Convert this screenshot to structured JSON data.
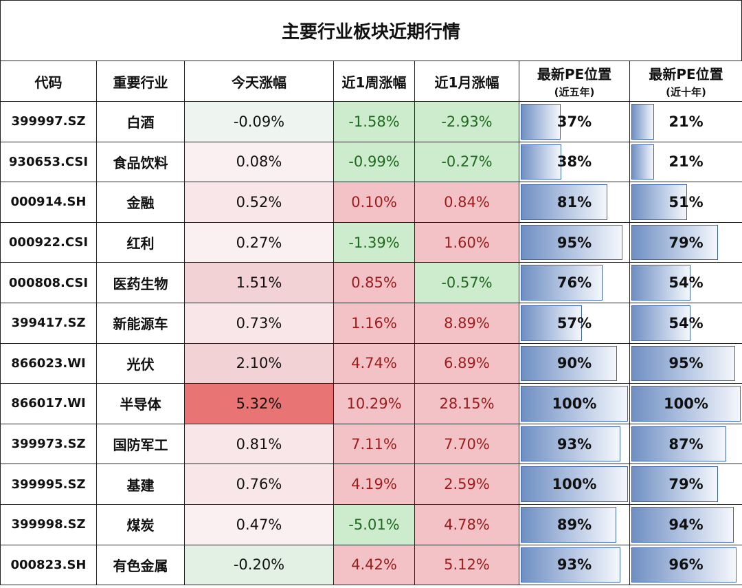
{
  "title": "主要行业板块近期行情",
  "headers": {
    "code": "代码",
    "industry": "重要行业",
    "today": "今天涨幅",
    "week": "近1周涨幅",
    "month": "近1月涨幅",
    "pe5_main": "最新PE位置",
    "pe5_sub": "(近五年)",
    "pe10_main": "最新PE位置",
    "pe10_sub": "(近十年)"
  },
  "chart_data": {
    "type": "table",
    "columns": [
      "代码",
      "重要行业",
      "今天涨幅",
      "近1周涨幅",
      "近1月涨幅",
      "最新PE位置(近五年)",
      "最新PE位置(近十年)"
    ],
    "rows": [
      {
        "code": "399997.SZ",
        "name": "白酒",
        "today": "-0.09%",
        "week": "-1.58%",
        "month": "-2.93%",
        "pe5": "37%",
        "pe10": "21%",
        "pe5_value": 37,
        "pe10_value": 21
      },
      {
        "code": "930653.CSI",
        "name": "食品饮料",
        "today": "0.08%",
        "week": "-0.99%",
        "month": "-0.27%",
        "pe5": "38%",
        "pe10": "21%",
        "pe5_value": 38,
        "pe10_value": 21
      },
      {
        "code": "000914.SH",
        "name": "金融",
        "today": "0.52%",
        "week": "0.10%",
        "month": "0.84%",
        "pe5": "81%",
        "pe10": "51%",
        "pe5_value": 81,
        "pe10_value": 51
      },
      {
        "code": "000922.CSI",
        "name": "红利",
        "today": "0.27%",
        "week": "-1.39%",
        "month": "1.60%",
        "pe5": "95%",
        "pe10": "79%",
        "pe5_value": 95,
        "pe10_value": 79
      },
      {
        "code": "000808.CSI",
        "name": "医药生物",
        "today": "1.51%",
        "week": "0.85%",
        "month": "-0.57%",
        "pe5": "76%",
        "pe10": "54%",
        "pe5_value": 76,
        "pe10_value": 54
      },
      {
        "code": "399417.SZ",
        "name": "新能源车",
        "today": "0.73%",
        "week": "1.16%",
        "month": "8.89%",
        "pe5": "57%",
        "pe10": "54%",
        "pe5_value": 57,
        "pe10_value": 54
      },
      {
        "code": "866023.WI",
        "name": "光伏",
        "today": "2.10%",
        "week": "4.74%",
        "month": "6.89%",
        "pe5": "90%",
        "pe10": "95%",
        "pe5_value": 90,
        "pe10_value": 95
      },
      {
        "code": "866017.WI",
        "name": "半导体",
        "today": "5.32%",
        "week": "10.29%",
        "month": "28.15%",
        "pe5": "100%",
        "pe10": "100%",
        "pe5_value": 100,
        "pe10_value": 100
      },
      {
        "code": "399973.SZ",
        "name": "国防军工",
        "today": "0.81%",
        "week": "7.11%",
        "month": "7.70%",
        "pe5": "93%",
        "pe10": "87%",
        "pe5_value": 93,
        "pe10_value": 87
      },
      {
        "code": "399995.SZ",
        "name": "基建",
        "today": "0.76%",
        "week": "4.19%",
        "month": "2.59%",
        "pe5": "100%",
        "pe10": "79%",
        "pe5_value": 100,
        "pe10_value": 79
      },
      {
        "code": "399998.SZ",
        "name": "煤炭",
        "today": "0.47%",
        "week": "-5.01%",
        "month": "4.78%",
        "pe5": "89%",
        "pe10": "94%",
        "pe5_value": 89,
        "pe10_value": 94
      },
      {
        "code": "000823.SH",
        "name": "有色金属",
        "today": "-0.20%",
        "week": "4.42%",
        "month": "5.12%",
        "pe5": "93%",
        "pe10": "96%",
        "pe5_value": 93,
        "pe10_value": 96
      }
    ]
  },
  "colors": {
    "heat_today": [
      "heat-green-faint",
      "heat-red-faint",
      "heat-red-light",
      "heat-red-faint",
      "heat-red-mid",
      "heat-red-light",
      "heat-red-mid",
      "heat-red-strong",
      "heat-red-light",
      "heat-red-light",
      "heat-red-faint",
      "heat-green-light"
    ],
    "heat_week": [
      "heat-green",
      "heat-green",
      "heat-red",
      "heat-green",
      "heat-red",
      "heat-red",
      "heat-red",
      "heat-red",
      "heat-red",
      "heat-red",
      "heat-green",
      "heat-red"
    ],
    "heat_month": [
      "heat-green",
      "heat-green",
      "heat-red",
      "heat-red",
      "heat-green",
      "heat-red",
      "heat-red",
      "heat-red",
      "heat-red",
      "heat-red",
      "heat-red",
      "heat-red"
    ]
  }
}
